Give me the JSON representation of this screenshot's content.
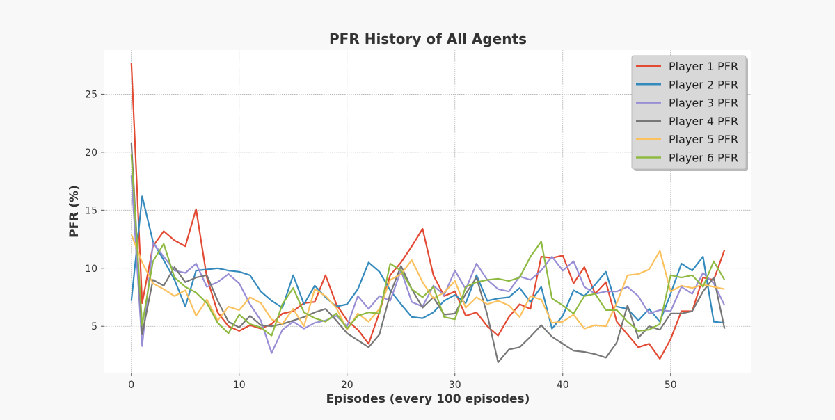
{
  "chart_data": {
    "type": "line",
    "title": "PFR History of All Agents",
    "xlabel": "Episodes (every 100 episodes)",
    "ylabel": "PFR (%)",
    "xlim": [
      -2.5,
      57.5
    ],
    "ylim": [
      1.0,
      28.8
    ],
    "xticks": [
      0,
      10,
      20,
      30,
      40,
      50
    ],
    "yticks": [
      5,
      10,
      15,
      20,
      25
    ],
    "grid": true,
    "legend_position": "upper-right",
    "x": [
      0,
      1,
      2,
      3,
      4,
      5,
      6,
      7,
      8,
      9,
      10,
      11,
      12,
      13,
      14,
      15,
      16,
      17,
      18,
      19,
      20,
      21,
      22,
      23,
      24,
      25,
      26,
      27,
      28,
      29,
      30,
      31,
      32,
      33,
      34,
      35,
      36,
      37,
      38,
      39,
      40,
      41,
      42,
      43,
      44,
      45,
      46,
      47,
      48,
      49,
      50,
      51,
      52,
      53,
      54,
      55
    ],
    "series": [
      {
        "name": "Player 1 PFR",
        "color": "#E24A33",
        "values": [
          27.7,
          7.0,
          11.9,
          13.2,
          12.4,
          11.9,
          15.1,
          9.2,
          6.2,
          5.0,
          4.6,
          5.1,
          4.8,
          5.2,
          6.1,
          6.3,
          7.0,
          7.1,
          9.4,
          6.9,
          5.5,
          4.7,
          3.5,
          6.2,
          9.4,
          10.5,
          11.9,
          13.4,
          9.4,
          7.6,
          8.0,
          5.9,
          6.2,
          5.0,
          4.2,
          5.8,
          6.9,
          6.5,
          11.0,
          10.9,
          11.1,
          8.7,
          10.1,
          7.8,
          8.8,
          5.4,
          4.3,
          3.2,
          3.5,
          2.2,
          3.9,
          6.3,
          6.3,
          9.2,
          9.0,
          11.6
        ]
      },
      {
        "name": "Player 2 PFR",
        "color": "#348ABD",
        "values": [
          7.2,
          16.2,
          12.3,
          10.7,
          9.0,
          6.7,
          9.8,
          9.9,
          10.0,
          9.8,
          9.7,
          9.4,
          8.0,
          7.2,
          6.6,
          9.4,
          6.9,
          8.5,
          7.5,
          6.7,
          6.9,
          8.2,
          10.5,
          9.7,
          8.1,
          6.9,
          5.8,
          5.7,
          6.2,
          7.2,
          7.7,
          7.0,
          9.4,
          7.2,
          7.4,
          7.5,
          8.3,
          7.1,
          8.4,
          4.8,
          5.9,
          8.1,
          7.6,
          8.6,
          9.7,
          6.7,
          6.5,
          5.5,
          6.5,
          5.4,
          7.8,
          10.4,
          9.8,
          11.0,
          5.4,
          5.3
        ]
      },
      {
        "name": "Player 3 PFR",
        "color": "#988ED5",
        "values": [
          18.0,
          3.3,
          12.2,
          11.0,
          9.8,
          9.6,
          10.4,
          8.4,
          8.8,
          9.5,
          8.7,
          6.9,
          5.5,
          2.7,
          4.7,
          5.4,
          4.8,
          5.3,
          5.5,
          5.9,
          5.0,
          7.6,
          6.5,
          7.6,
          7.2,
          9.8,
          7.1,
          6.7,
          8.5,
          7.7,
          9.8,
          8.2,
          10.4,
          9.0,
          8.2,
          8.0,
          9.3,
          9.0,
          9.8,
          11.0,
          9.8,
          10.6,
          8.4,
          7.8,
          8.0,
          8.0,
          8.4,
          7.6,
          6.1,
          6.4,
          6.3,
          8.4,
          7.8,
          9.6,
          8.7,
          6.8
        ]
      },
      {
        "name": "Player 4 PFR",
        "color": "#777777",
        "values": [
          20.8,
          4.3,
          9.0,
          8.5,
          10.1,
          8.8,
          9.2,
          9.4,
          7.2,
          5.4,
          4.9,
          5.9,
          5.1,
          5.0,
          5.2,
          5.5,
          5.8,
          6.2,
          6.5,
          5.5,
          4.4,
          3.8,
          3.2,
          4.3,
          7.8,
          10.2,
          8.2,
          6.6,
          7.5,
          6.0,
          6.1,
          7.8,
          9.2,
          6.0,
          1.9,
          3.0,
          3.2,
          4.1,
          5.1,
          4.1,
          3.5,
          2.9,
          2.8,
          2.6,
          2.3,
          3.6,
          6.8,
          4.0,
          5.0,
          4.7,
          6.1,
          6.1,
          6.3,
          8.0,
          9.2,
          4.8
        ]
      },
      {
        "name": "Player 5 PFR",
        "color": "#FBC15E",
        "values": [
          12.9,
          10.5,
          8.7,
          8.2,
          7.6,
          8.1,
          5.9,
          7.3,
          5.5,
          6.7,
          6.4,
          7.5,
          7.0,
          5.6,
          5.2,
          6.5,
          5.0,
          8.2,
          7.6,
          6.6,
          4.7,
          6.1,
          5.4,
          6.5,
          9.0,
          9.5,
          10.7,
          8.8,
          7.4,
          7.9,
          8.9,
          6.6,
          7.5,
          6.9,
          7.2,
          6.8,
          5.8,
          7.6,
          7.3,
          5.3,
          5.4,
          6.0,
          4.8,
          5.1,
          5.0,
          7.0,
          9.4,
          9.5,
          9.9,
          11.5,
          8.0,
          8.5,
          8.3,
          8.6,
          8.4,
          8.2
        ]
      },
      {
        "name": "Player 6 PFR",
        "color": "#8EBA42",
        "values": [
          19.8,
          5.1,
          10.6,
          12.1,
          9.2,
          8.4,
          7.9,
          7.0,
          5.3,
          4.4,
          6.0,
          5.2,
          4.9,
          4.2,
          6.9,
          8.3,
          6.2,
          5.7,
          5.4,
          6.1,
          4.8,
          5.9,
          6.2,
          6.1,
          10.4,
          9.8,
          8.2,
          7.5,
          8.4,
          5.8,
          5.6,
          8.4,
          8.8,
          9.0,
          9.1,
          8.9,
          9.2,
          11.0,
          12.3,
          7.4,
          6.8,
          6.1,
          7.6,
          7.8,
          6.4,
          6.4,
          5.4,
          4.6,
          4.7,
          5.2,
          9.4,
          9.2,
          9.4,
          8.4,
          10.6,
          9.0
        ]
      }
    ]
  }
}
